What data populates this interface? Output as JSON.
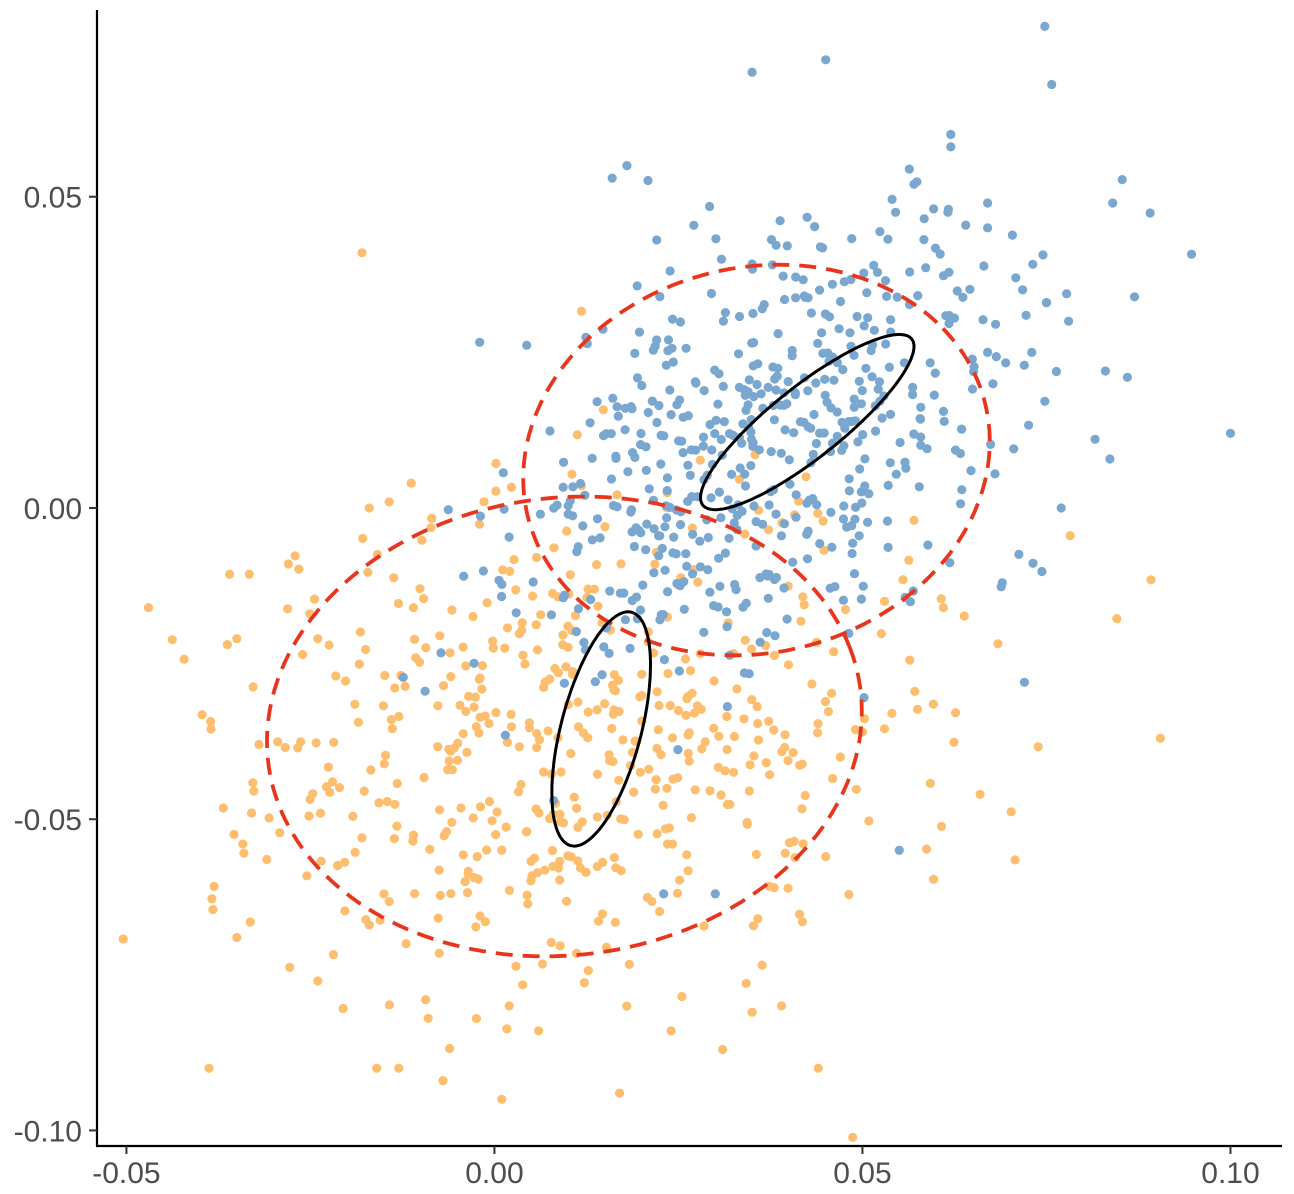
{
  "chart_data": {
    "type": "scatter",
    "title": "",
    "xlabel": "",
    "ylabel": "",
    "xlim": [
      -0.054,
      0.107
    ],
    "ylim": [
      -0.1025,
      0.08
    ],
    "x_ticks": [
      -0.05,
      0.0,
      0.05,
      0.1
    ],
    "x_tick_labels": [
      "-0.05",
      "0.00",
      "0.05",
      "0.10"
    ],
    "y_ticks": [
      -0.1,
      -0.05,
      0.0,
      0.05
    ],
    "y_tick_labels": [
      "-0.10",
      "-0.05",
      "0.00",
      "0.05"
    ],
    "grid": false,
    "legend": "none",
    "series": [
      {
        "color": "#fdbf6f",
        "generated_summary": {
          "n": 520,
          "mean": [
            0.012,
            -0.035
          ],
          "sd": [
            0.024,
            0.021
          ],
          "corr": 0.12,
          "seed": 7
        },
        "points": [
          [
            -0.047,
            -0.016
          ],
          [
            -0.035,
            -0.021
          ],
          [
            -0.018,
            0.041
          ],
          [
            -0.035,
            -0.069
          ],
          [
            -0.033,
            -0.049
          ],
          [
            -0.032,
            -0.038
          ],
          [
            -0.028,
            -0.009
          ],
          [
            -0.024,
            -0.076
          ],
          [
            -0.022,
            -0.044
          ],
          [
            -0.017,
            -0.067
          ],
          [
            -0.016,
            -0.09
          ],
          [
            -0.013,
            -0.09
          ],
          [
            -0.012,
            -0.07
          ],
          [
            -0.009,
            -0.082
          ],
          [
            -0.007,
            -0.092
          ],
          [
            -0.004,
            -0.06
          ],
          [
            0.001,
            -0.095
          ],
          [
            0.002,
            -0.08
          ],
          [
            0.006,
            -0.084
          ],
          [
            0.017,
            -0.094
          ],
          [
            0.024,
            -0.084
          ],
          [
            0.031,
            -0.087
          ],
          [
            0.035,
            -0.081
          ],
          [
            0.039,
            -0.08
          ],
          [
            0.044,
            -0.09
          ],
          [
            0.038,
            -0.061
          ],
          [
            0.045,
            -0.056
          ],
          [
            0.047,
            -0.04
          ],
          [
            0.05,
            -0.036
          ],
          [
            0.054,
            -0.033
          ],
          [
            0.053,
            -0.015
          ],
          [
            0.057,
            -0.002
          ],
          [
            0.061,
            -0.016
          ],
          [
            -0.014,
            -0.034
          ],
          [
            -0.017,
            0.0
          ],
          [
            -0.011,
            -0.016
          ],
          [
            -0.018,
            -0.053
          ],
          [
            -0.015,
            -0.062
          ],
          [
            -0.024,
            -0.021
          ]
        ]
      },
      {
        "color": "#7aa7cf",
        "generated_summary": {
          "n": 560,
          "mean": [
            0.036,
            0.011
          ],
          "sd": [
            0.017,
            0.018
          ],
          "corr": 0.35,
          "seed": 11
        },
        "points": [
          [
            0.035,
            0.07
          ],
          [
            0.045,
            0.072
          ],
          [
            0.018,
            0.055
          ],
          [
            0.016,
            0.053
          ],
          [
            0.062,
            0.06
          ],
          [
            0.062,
            0.058
          ],
          [
            0.075,
            0.033
          ],
          [
            0.075,
            0.033
          ],
          [
            0.084,
            0.049
          ],
          [
            0.083,
            0.022
          ],
          [
            0.086,
            0.021
          ],
          [
            0.1,
            0.012
          ],
          [
            0.077,
            0.0
          ],
          [
            0.069,
            -0.012
          ],
          [
            0.072,
            -0.028
          ],
          [
            0.055,
            -0.055
          ],
          [
            0.037,
            -0.02
          ],
          [
            0.03,
            -0.062
          ],
          [
            0.023,
            -0.062
          ],
          [
            0.067,
            0.025
          ],
          [
            0.078,
            0.03
          ],
          [
            0.067,
            0.045
          ],
          [
            0.057,
            0.052
          ],
          [
            0.067,
            0.049
          ],
          [
            0.073,
            0.025
          ]
        ]
      }
    ],
    "ellipses": [
      {
        "style": "dashed",
        "color": "#e8361e",
        "center": [
          0.0095,
          -0.0351
        ],
        "semi_axis_a": 0.0408,
        "semi_axis_b": 0.0365,
        "angle_deg": 18
      },
      {
        "style": "dashed",
        "color": "#e8361e",
        "center": [
          0.0356,
          0.0077
        ],
        "semi_axis_a": 0.033,
        "semi_axis_b": 0.03,
        "angle_deg": 42
      },
      {
        "style": "solid",
        "color": "#000000",
        "center": [
          0.0145,
          -0.0355
        ],
        "semi_axis_a": 0.0192,
        "semi_axis_b": 0.0055,
        "angle_deg": 78
      },
      {
        "style": "solid",
        "color": "#000000",
        "center": [
          0.0425,
          0.0138
        ],
        "semi_axis_a": 0.0195,
        "semi_axis_b": 0.0053,
        "angle_deg": 44
      }
    ]
  }
}
